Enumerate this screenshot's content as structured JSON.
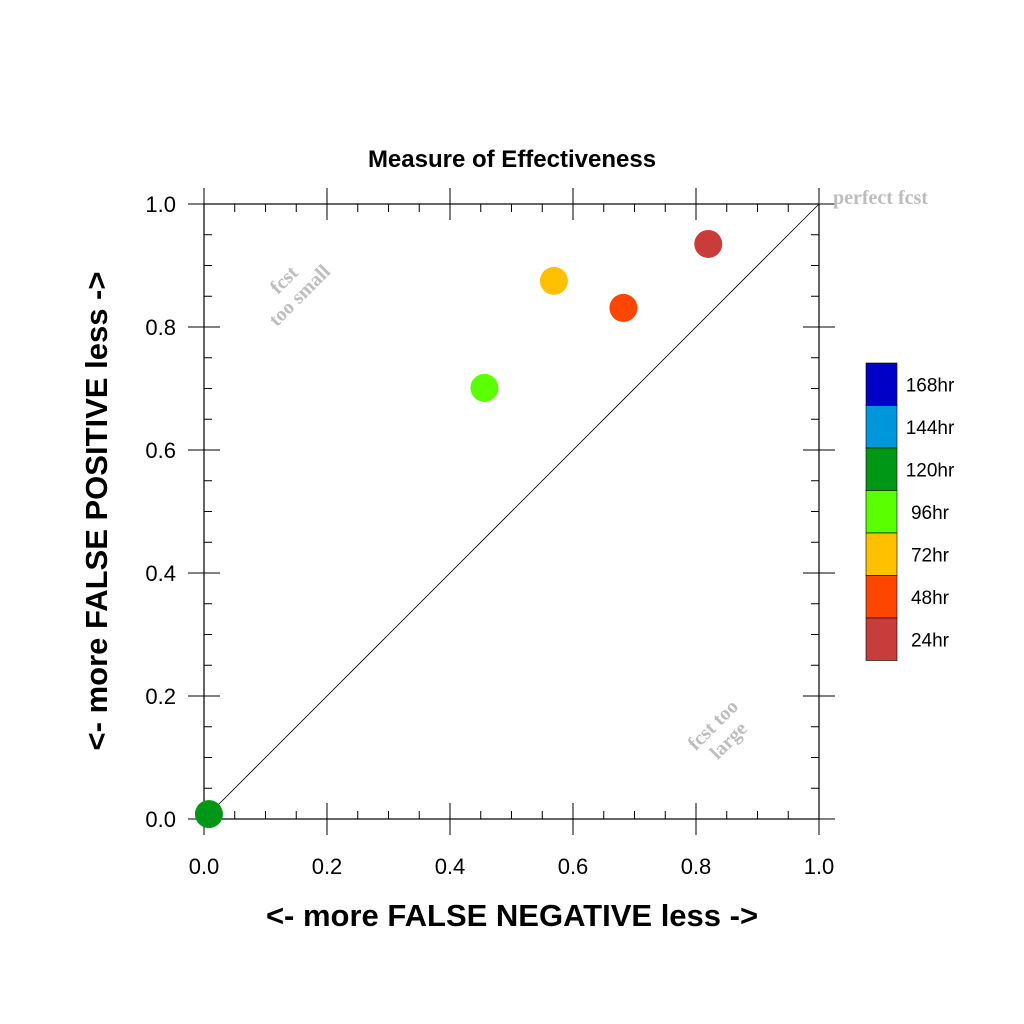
{
  "chart_data": {
    "type": "scatter",
    "title": "Measure of Effectiveness",
    "xlabel": "<- more   FALSE NEGATIVE   less ->",
    "ylabel": "<- more   FALSE POSITIVE   less ->",
    "xlim": [
      0,
      1
    ],
    "ylim": [
      0,
      1
    ],
    "xticks": [
      "0.0",
      "0.2",
      "0.4",
      "0.6",
      "0.8",
      "1.0"
    ],
    "yticks": [
      "0.0",
      "0.2",
      "0.4",
      "0.6",
      "0.8",
      "1.0"
    ],
    "grid": false,
    "diagonal_reference_line": true,
    "legend_position": "right",
    "annotations": {
      "perfect": "perfect fcst",
      "too_small_1": "fcst",
      "too_small_2": "too small",
      "too_large_1": "fcst too",
      "too_large_2": "large"
    },
    "legend": [
      {
        "label": "168hr",
        "color": "#0000c8"
      },
      {
        "label": "144hr",
        "color": "#0096dc"
      },
      {
        "label": "120hr",
        "color": "#009616"
      },
      {
        "label": "96hr",
        "color": "#5aff00"
      },
      {
        "label": "72hr",
        "color": "#ffc000"
      },
      {
        "label": "48hr",
        "color": "#ff4600"
      },
      {
        "label": "24hr",
        "color": "#c83c3c"
      }
    ],
    "series": [
      {
        "label": "24hr",
        "x": 0.82,
        "y": 0.935
      },
      {
        "label": "48hr",
        "x": 0.682,
        "y": 0.831
      },
      {
        "label": "72hr",
        "x": 0.569,
        "y": 0.875
      },
      {
        "label": "96hr",
        "x": 0.456,
        "y": 0.701
      },
      {
        "label": "120hr",
        "x": 0.008,
        "y": 0.008
      }
    ]
  }
}
